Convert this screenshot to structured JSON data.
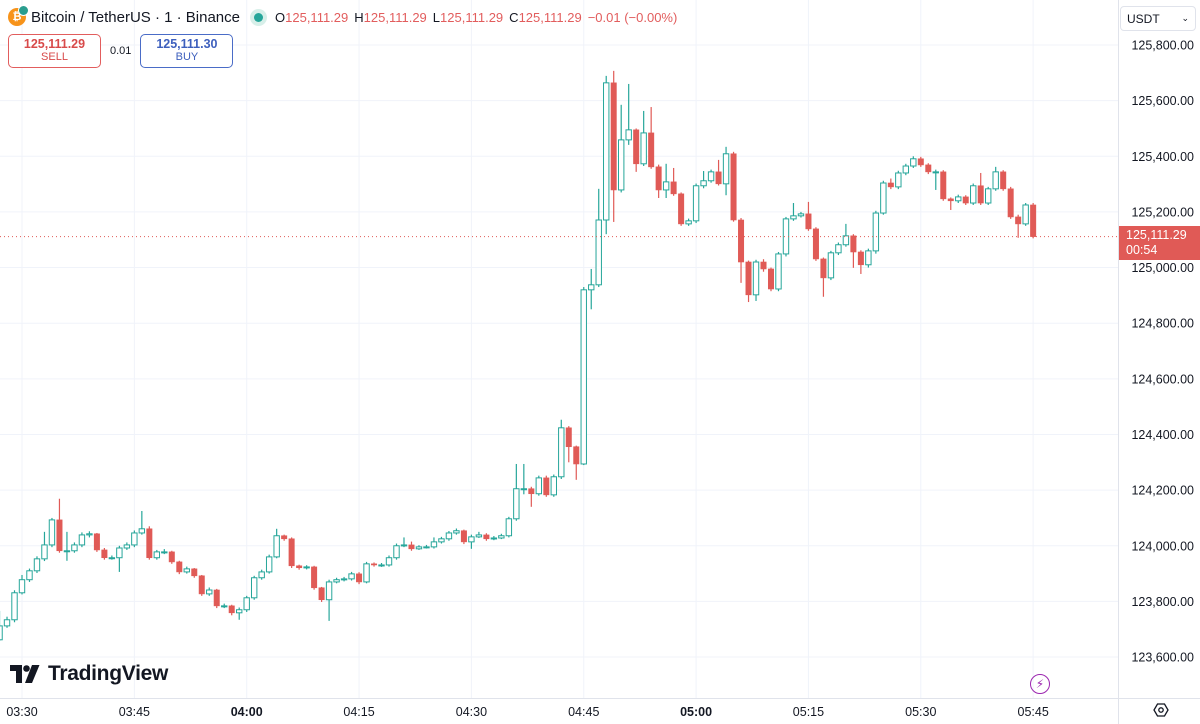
{
  "header": {
    "symbol": "Bitcoin / TetherUS · 1 · Binance",
    "status": "market-open-dot",
    "ohlc": {
      "o_label": "O",
      "o": "125,111.29",
      "h_label": "H",
      "h": "125,111.29",
      "l_label": "L",
      "l": "125,111.29",
      "c_label": "C",
      "c": "125,111.29",
      "change": "−0.01 (−0.00%)"
    }
  },
  "trade": {
    "sell_price": "125,111.29",
    "sell_label": "SELL",
    "spread": "0.01",
    "buy_price": "125,111.30",
    "buy_label": "BUY"
  },
  "currency_selector": "USDT",
  "last_price": {
    "value": "125,111.29",
    "countdown": "00:54"
  },
  "brand": "TradingView",
  "icons": {
    "lightning": "lightning-icon",
    "settings": "settings-icon",
    "logo": "tradingview-logo-icon"
  },
  "colors": {
    "up": "#26a69a",
    "down": "#e05a56",
    "price_line": "#e05a56",
    "grid": "#f0f3fa"
  },
  "chart_data": {
    "type": "candlestick",
    "interval_minutes": 1,
    "start_time": "03:27",
    "ylim": [
      123500,
      125880
    ],
    "y_ticks": [
      "125,800.00",
      "125,600.00",
      "125,400.00",
      "125,200.00",
      "125,000.00",
      "124,800.00",
      "124,600.00",
      "124,400.00",
      "124,200.00",
      "124,000.00",
      "123,800.00",
      "123,600.00"
    ],
    "y_tick_values": [
      125800,
      125600,
      125400,
      125200,
      125000,
      124800,
      124600,
      124400,
      124200,
      124000,
      123800,
      123600
    ],
    "x_ticks": [
      {
        "label": "03:30",
        "bold": false
      },
      {
        "label": "03:45",
        "bold": false
      },
      {
        "label": "04:00",
        "bold": true
      },
      {
        "label": "04:15",
        "bold": false
      },
      {
        "label": "04:30",
        "bold": false
      },
      {
        "label": "04:45",
        "bold": false
      },
      {
        "label": "05:00",
        "bold": true
      },
      {
        "label": "05:15",
        "bold": false
      },
      {
        "label": "05:30",
        "bold": false
      },
      {
        "label": "05:45",
        "bold": false
      }
    ],
    "grid": true,
    "ohlc": [
      [
        123662,
        123766,
        123658,
        123712
      ],
      [
        123712,
        123745,
        123705,
        123734
      ],
      [
        123734,
        123840,
        123725,
        123831
      ],
      [
        123831,
        123895,
        123825,
        123878
      ],
      [
        123878,
        123918,
        123870,
        123910
      ],
      [
        123910,
        123962,
        123902,
        123953
      ],
      [
        123953,
        124050,
        123945,
        124003
      ],
      [
        124003,
        124100,
        123995,
        124093
      ],
      [
        124093,
        124169,
        123975,
        123982
      ],
      [
        123982,
        124050,
        123946,
        123982
      ],
      [
        123982,
        124012,
        123975,
        124003
      ],
      [
        124003,
        124048,
        123995,
        124039
      ],
      [
        124039,
        124052,
        124030,
        124043
      ],
      [
        124043,
        124046,
        123978,
        123985
      ],
      [
        123985,
        123992,
        123950,
        123957
      ],
      [
        123957,
        123965,
        123950,
        123957
      ],
      [
        123957,
        124000,
        123906,
        123992
      ],
      [
        123992,
        124012,
        123985,
        124003
      ],
      [
        124003,
        124055,
        123995,
        124046
      ],
      [
        124046,
        124125,
        124040,
        124061
      ],
      [
        124061,
        124070,
        123950,
        123957
      ],
      [
        123957,
        123985,
        123950,
        123978
      ],
      [
        123978,
        123988,
        123970,
        123978
      ],
      [
        123978,
        123982,
        123935,
        123942
      ],
      [
        123942,
        123946,
        123898,
        123906
      ],
      [
        123906,
        123925,
        123900,
        123917
      ],
      [
        123917,
        123920,
        123885,
        123892
      ],
      [
        123892,
        123895,
        123820,
        123827
      ],
      [
        123827,
        123850,
        123820,
        123841
      ],
      [
        123841,
        123845,
        123776,
        123784
      ],
      [
        123784,
        123792,
        123776,
        123784
      ],
      [
        123784,
        123788,
        123750,
        123759
      ],
      [
        123759,
        123778,
        123734,
        123770
      ],
      [
        123770,
        123820,
        123762,
        123813
      ],
      [
        123813,
        123892,
        123806,
        123885
      ],
      [
        123885,
        123914,
        123878,
        123906
      ],
      [
        123906,
        123968,
        123900,
        123960
      ],
      [
        123960,
        124061,
        123955,
        124036
      ],
      [
        124036,
        124040,
        124018,
        124025
      ],
      [
        124025,
        124030,
        123920,
        123928
      ],
      [
        123928,
        123932,
        123914,
        123921
      ],
      [
        123921,
        123930,
        123915,
        123924
      ],
      [
        123924,
        123928,
        123842,
        123849
      ],
      [
        123849,
        123852,
        123798,
        123806
      ],
      [
        123806,
        123878,
        123730,
        123870
      ],
      [
        123870,
        123885,
        123865,
        123878
      ],
      [
        123878,
        123888,
        123872,
        123881
      ],
      [
        123881,
        123906,
        123875,
        123899
      ],
      [
        123899,
        123905,
        123862,
        123870
      ],
      [
        123870,
        123942,
        123865,
        123935
      ],
      [
        123935,
        123940,
        123925,
        123931
      ],
      [
        123931,
        123938,
        123924,
        123931
      ],
      [
        123931,
        123965,
        123925,
        123957
      ],
      [
        123957,
        124008,
        123950,
        124000
      ],
      [
        124000,
        124030,
        123995,
        124003
      ],
      [
        124003,
        124015,
        123982,
        123989
      ],
      [
        123989,
        124002,
        123985,
        123996
      ],
      [
        123996,
        124003,
        123990,
        123996
      ],
      [
        123996,
        124030,
        123990,
        124014
      ],
      [
        124014,
        124032,
        124008,
        124025
      ],
      [
        124025,
        124053,
        124018,
        124046
      ],
      [
        124046,
        124062,
        124040,
        124054
      ],
      [
        124054,
        124058,
        124006,
        124014
      ],
      [
        124014,
        124040,
        123989,
        124032
      ],
      [
        124032,
        124050,
        124028,
        124039
      ],
      [
        124039,
        124045,
        124018,
        124025
      ],
      [
        124025,
        124035,
        124020,
        124028
      ],
      [
        124028,
        124043,
        124024,
        124036
      ],
      [
        124036,
        124104,
        124030,
        124097
      ],
      [
        124097,
        124294,
        124090,
        124205
      ],
      [
        124205,
        124294,
        124185,
        124205
      ],
      [
        124205,
        124212,
        124140,
        124187
      ],
      [
        124187,
        124252,
        124180,
        124244
      ],
      [
        124244,
        124252,
        124176,
        124183
      ],
      [
        124183,
        124256,
        124176,
        124248
      ],
      [
        124248,
        124453,
        124240,
        124424
      ],
      [
        124424,
        124430,
        124300,
        124356
      ],
      [
        124356,
        124360,
        124237,
        124294
      ],
      [
        124294,
        124930,
        124290,
        124920
      ],
      [
        124920,
        124995,
        124850,
        124938
      ],
      [
        124938,
        125283,
        124930,
        125171
      ],
      [
        125171,
        125689,
        125120,
        125664
      ],
      [
        125664,
        125707,
        125164,
        125279
      ],
      [
        125279,
        125585,
        125270,
        125459
      ],
      [
        125459,
        125660,
        125441,
        125495
      ],
      [
        125495,
        125500,
        125344,
        125373
      ],
      [
        125373,
        125563,
        125365,
        125484
      ],
      [
        125484,
        125577,
        125355,
        125362
      ],
      [
        125362,
        125370,
        125250,
        125279
      ],
      [
        125279,
        125373,
        125250,
        125308
      ],
      [
        125308,
        125358,
        125258,
        125265
      ],
      [
        125265,
        125270,
        125150,
        125157
      ],
      [
        125157,
        125176,
        125150,
        125168
      ],
      [
        125168,
        125302,
        125160,
        125294
      ],
      [
        125294,
        125347,
        125285,
        125312
      ],
      [
        125312,
        125352,
        125305,
        125344
      ],
      [
        125344,
        125387,
        125295,
        125301
      ],
      [
        125301,
        125434,
        125260,
        125409
      ],
      [
        125409,
        125416,
        125165,
        125171
      ],
      [
        125171,
        125178,
        124945,
        125020
      ],
      [
        125020,
        125025,
        124876,
        124902
      ],
      [
        124902,
        125028,
        124880,
        125020
      ],
      [
        125020,
        125030,
        124985,
        124995
      ],
      [
        124995,
        125000,
        124915,
        124923
      ],
      [
        124923,
        125056,
        124915,
        125049
      ],
      [
        125049,
        125182,
        125040,
        125175
      ],
      [
        125175,
        125232,
        125168,
        125186
      ],
      [
        125186,
        125200,
        125180,
        125193
      ],
      [
        125193,
        125236,
        125132,
        125139
      ],
      [
        125139,
        125145,
        125024,
        125031
      ],
      [
        125031,
        125036,
        124895,
        124963
      ],
      [
        124963,
        125060,
        124955,
        125053
      ],
      [
        125053,
        125090,
        125045,
        125082
      ],
      [
        125082,
        125157,
        125075,
        125114
      ],
      [
        125114,
        125120,
        124999,
        125056
      ],
      [
        125056,
        125062,
        124977,
        125010
      ],
      [
        125010,
        125068,
        125000,
        125060
      ],
      [
        125060,
        125204,
        125050,
        125196
      ],
      [
        125196,
        125312,
        125190,
        125304
      ],
      [
        125304,
        125320,
        125282,
        125290
      ],
      [
        125290,
        125348,
        125282,
        125340
      ],
      [
        125340,
        125373,
        125332,
        125365
      ],
      [
        125365,
        125400,
        125358,
        125391
      ],
      [
        125391,
        125398,
        125362,
        125369
      ],
      [
        125369,
        125375,
        125336,
        125344
      ],
      [
        125344,
        125352,
        125279,
        125344
      ],
      [
        125344,
        125350,
        125240,
        125247
      ],
      [
        125247,
        125252,
        125207,
        125240
      ],
      [
        125240,
        125262,
        125232,
        125254
      ],
      [
        125254,
        125260,
        125225,
        125232
      ],
      [
        125232,
        125302,
        125225,
        125294
      ],
      [
        125294,
        125340,
        125225,
        125232
      ],
      [
        125232,
        125290,
        125225,
        125283
      ],
      [
        125283,
        125362,
        125276,
        125344
      ],
      [
        125344,
        125350,
        125276,
        125283
      ],
      [
        125283,
        125290,
        125175,
        125182
      ],
      [
        125182,
        125190,
        125107,
        125157
      ],
      [
        125157,
        125232,
        125150,
        125225
      ],
      [
        125225,
        125232,
        125105,
        125111.29
      ]
    ]
  }
}
